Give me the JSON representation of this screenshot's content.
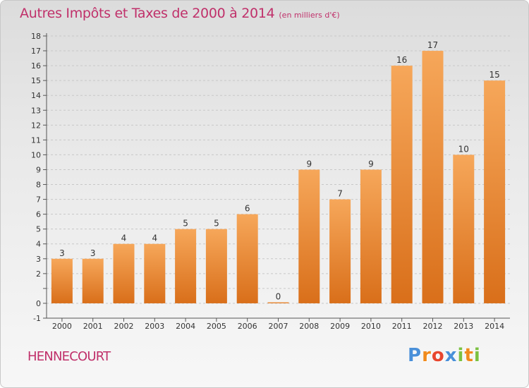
{
  "header": {
    "title": "Autres Impôts et Taxes de 2000 à 2014",
    "unit": "(en milliers d'€)"
  },
  "footer": {
    "commune": "HENNECOURT",
    "logo_text": "Proxiti",
    "logo_letters": [
      "P",
      "r",
      "o",
      "x",
      "i",
      "t",
      "i"
    ],
    "logo_colors": [
      "#4a90d9",
      "#f08a1c",
      "#e8462e",
      "#4a90d9",
      "#7cc142",
      "#f08a1c",
      "#7cc142"
    ]
  },
  "colors": {
    "title": "#c0306a",
    "bar_light": "#f6a75a",
    "bar_dark": "#d96f1a",
    "grid": "#c8c8c8"
  },
  "chart_data": {
    "type": "bar",
    "categories": [
      "2000",
      "2001",
      "2002",
      "2003",
      "2004",
      "2005",
      "2006",
      "2007",
      "2008",
      "2009",
      "2010",
      "2011",
      "2012",
      "2013",
      "2014"
    ],
    "values": [
      3,
      3,
      4,
      4,
      5,
      5,
      6,
      0,
      9,
      7,
      9,
      16,
      17,
      10,
      15
    ],
    "data_labels": [
      "3",
      "3",
      "4",
      "4",
      "5",
      "5",
      "6",
      "0",
      "9",
      "7",
      "9",
      "16",
      "17",
      "10",
      "15"
    ],
    "yticks": [
      -1,
      0,
      1,
      2,
      3,
      4,
      5,
      6,
      7,
      8,
      9,
      10,
      11,
      12,
      13,
      14,
      15,
      16,
      17,
      18
    ],
    "ytick_labels": [
      "-1",
      "0",
      "",
      "2",
      "3",
      "4",
      "5",
      "6",
      "7",
      "8",
      "9",
      "10",
      "11",
      "12",
      "13",
      "14",
      "15",
      "16",
      "17",
      "18"
    ],
    "ylim": [
      -1,
      18
    ],
    "title": "Autres Impôts et Taxes de 2000 à 2014",
    "xlabel": "",
    "ylabel": "",
    "grid": true
  }
}
